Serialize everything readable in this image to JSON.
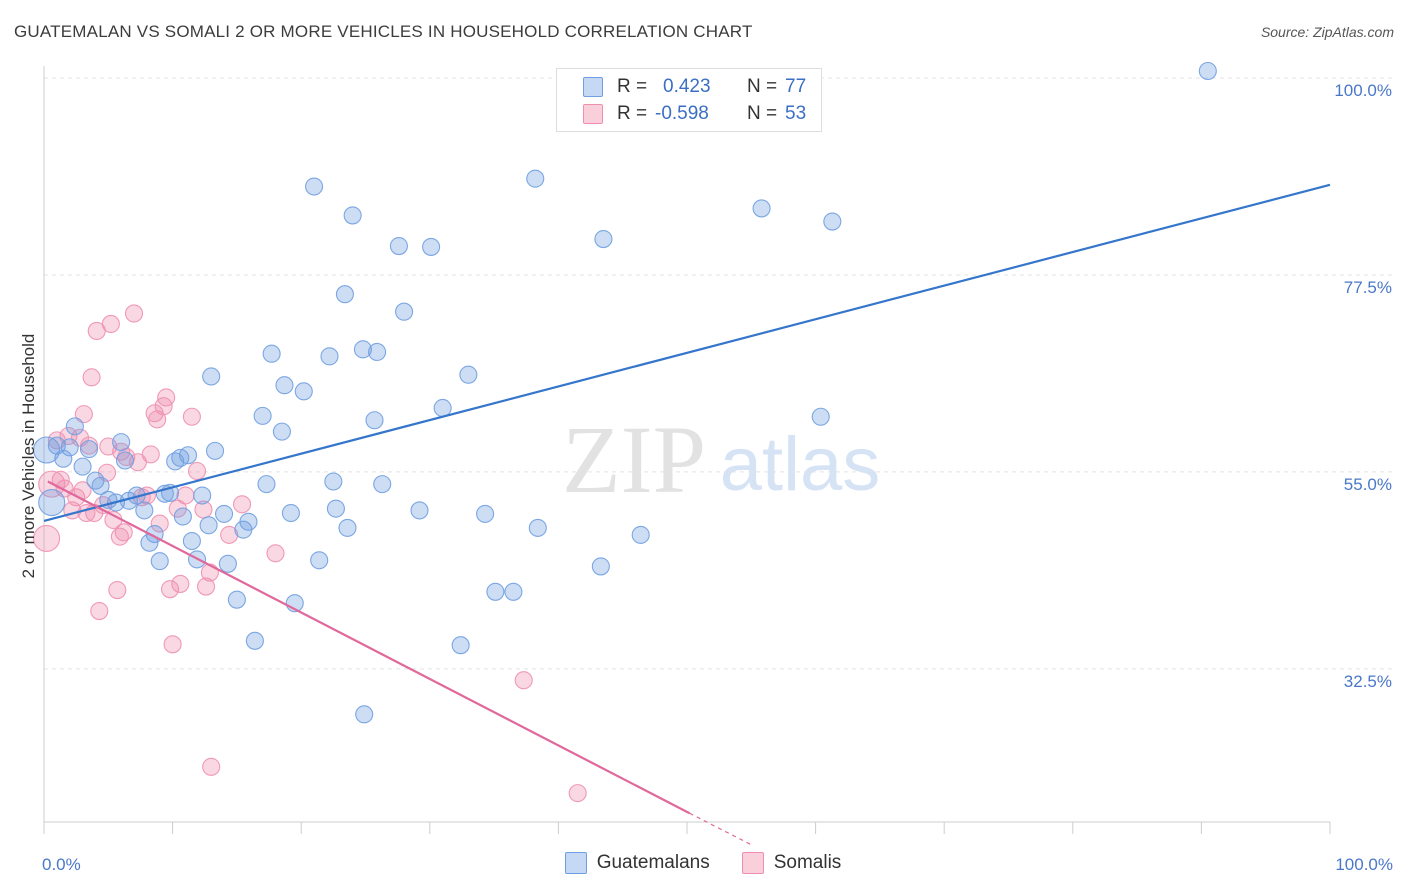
{
  "title": "GUATEMALAN VS SOMALI 2 OR MORE VEHICLES IN HOUSEHOLD CORRELATION CHART",
  "source": "Source: ZipAtlas.com",
  "watermark": {
    "zip": "ZIP",
    "atlas": "atlas"
  },
  "legend": {
    "rows": [
      {
        "r_label": "R =",
        "r_value": "0.423",
        "n_label": "N =",
        "n_value": "77"
      },
      {
        "r_label": "R =",
        "r_value": "-0.598",
        "n_label": "N =",
        "n_value": "53"
      }
    ]
  },
  "bottom_legend": [
    "Guatemalans",
    "Somalis"
  ],
  "chart_data": {
    "type": "scatter",
    "ylabel": "2 or more Vehicles in Household",
    "xlim": [
      0,
      100
    ],
    "ylim": [
      15,
      100
    ],
    "x_tick_labels": [
      "0.0%",
      "100.0%"
    ],
    "y_ticks": [
      {
        "value": 100,
        "label": "100.0%"
      },
      {
        "value": 77.5,
        "label": "77.5%"
      },
      {
        "value": 55,
        "label": "55.0%"
      },
      {
        "value": 32.5,
        "label": "32.5%"
      }
    ],
    "grid": true,
    "colors": {
      "guatemalans": "#6f9fe0",
      "somalis": "#ef8fb0",
      "blue_line": "#3576cc",
      "pink_line": "#e0689a",
      "tick_text": "#4a78c8"
    },
    "series": [
      {
        "name": "Guatemalans",
        "trend": [
          [
            0,
            49.4
          ],
          [
            100,
            87.8
          ]
        ],
        "points": [
          [
            0.2,
            57.5
          ],
          [
            0.6,
            51.5
          ],
          [
            1.0,
            58.0
          ],
          [
            1.5,
            56.5
          ],
          [
            2.0,
            57.8
          ],
          [
            2.4,
            60.2
          ],
          [
            3.0,
            55.6
          ],
          [
            3.5,
            57.6
          ],
          [
            4.0,
            54.0
          ],
          [
            4.4,
            53.4
          ],
          [
            5.0,
            51.8
          ],
          [
            5.6,
            51.5
          ],
          [
            6.0,
            58.4
          ],
          [
            6.3,
            56.3
          ],
          [
            6.6,
            51.7
          ],
          [
            7.2,
            52.3
          ],
          [
            7.8,
            50.6
          ],
          [
            8.2,
            46.9
          ],
          [
            8.6,
            47.9
          ],
          [
            9.0,
            44.8
          ],
          [
            9.4,
            52.5
          ],
          [
            9.8,
            52.6
          ],
          [
            10.2,
            56.2
          ],
          [
            10.6,
            56.6
          ],
          [
            10.8,
            49.9
          ],
          [
            11.2,
            56.9
          ],
          [
            11.5,
            47.1
          ],
          [
            11.9,
            45.0
          ],
          [
            12.3,
            52.3
          ],
          [
            12.8,
            48.9
          ],
          [
            13.0,
            65.9
          ],
          [
            13.3,
            57.4
          ],
          [
            14.0,
            50.2
          ],
          [
            14.3,
            44.5
          ],
          [
            15.0,
            40.4
          ],
          [
            15.5,
            48.4
          ],
          [
            15.9,
            49.3
          ],
          [
            16.4,
            35.7
          ],
          [
            17.0,
            61.4
          ],
          [
            17.3,
            53.6
          ],
          [
            17.7,
            68.5
          ],
          [
            18.5,
            59.6
          ],
          [
            18.7,
            64.9
          ],
          [
            19.2,
            50.3
          ],
          [
            19.5,
            40.0
          ],
          [
            20.2,
            64.2
          ],
          [
            21.0,
            87.6
          ],
          [
            21.4,
            44.9
          ],
          [
            22.2,
            68.2
          ],
          [
            22.5,
            53.9
          ],
          [
            22.7,
            50.8
          ],
          [
            23.4,
            75.3
          ],
          [
            23.6,
            48.6
          ],
          [
            24.0,
            84.3
          ],
          [
            24.8,
            69.0
          ],
          [
            24.9,
            27.3
          ],
          [
            25.7,
            60.9
          ],
          [
            25.9,
            68.7
          ],
          [
            26.3,
            53.6
          ],
          [
            27.6,
            80.8
          ],
          [
            28.0,
            73.3
          ],
          [
            29.2,
            50.6
          ],
          [
            30.1,
            80.7
          ],
          [
            31.0,
            62.3
          ],
          [
            32.4,
            35.2
          ],
          [
            33.0,
            66.1
          ],
          [
            34.3,
            50.2
          ],
          [
            35.1,
            41.3
          ],
          [
            36.5,
            41.3
          ],
          [
            38.2,
            88.5
          ],
          [
            38.4,
            48.6
          ],
          [
            43.3,
            44.2
          ],
          [
            43.5,
            81.6
          ],
          [
            46.4,
            47.8
          ],
          [
            55.8,
            85.1
          ],
          [
            60.4,
            61.3
          ],
          [
            61.3,
            83.6
          ],
          [
            90.5,
            100.8
          ]
        ]
      },
      {
        "name": "Somalis",
        "trend": [
          [
            0.3,
            53.9
          ],
          [
            50.2,
            16.0
          ]
        ],
        "trend_dash": [
          [
            50.2,
            16.0
          ],
          [
            55.0,
            12.4
          ]
        ],
        "points": [
          [
            0.2,
            47.4
          ],
          [
            0.6,
            53.6
          ],
          [
            1.0,
            58.6
          ],
          [
            1.3,
            54.1
          ],
          [
            1.6,
            53.1
          ],
          [
            1.9,
            59.1
          ],
          [
            2.2,
            50.6
          ],
          [
            2.5,
            52.1
          ],
          [
            2.8,
            58.9
          ],
          [
            3.0,
            52.9
          ],
          [
            3.1,
            61.6
          ],
          [
            3.3,
            50.3
          ],
          [
            3.5,
            58.0
          ],
          [
            3.7,
            65.8
          ],
          [
            3.9,
            50.3
          ],
          [
            4.1,
            71.1
          ],
          [
            4.3,
            39.1
          ],
          [
            4.6,
            51.2
          ],
          [
            4.9,
            54.9
          ],
          [
            5.0,
            57.9
          ],
          [
            5.2,
            71.9
          ],
          [
            5.4,
            49.5
          ],
          [
            5.7,
            41.5
          ],
          [
            5.9,
            47.6
          ],
          [
            6.0,
            57.3
          ],
          [
            6.2,
            48.1
          ],
          [
            6.4,
            56.7
          ],
          [
            7.0,
            73.1
          ],
          [
            7.3,
            56.1
          ],
          [
            7.6,
            52.1
          ],
          [
            8.0,
            52.3
          ],
          [
            8.3,
            57.0
          ],
          [
            8.6,
            61.7
          ],
          [
            8.8,
            61.0
          ],
          [
            9.0,
            49.1
          ],
          [
            9.3,
            62.5
          ],
          [
            9.5,
            63.5
          ],
          [
            9.8,
            41.6
          ],
          [
            10.0,
            35.3
          ],
          [
            10.4,
            50.8
          ],
          [
            10.6,
            42.2
          ],
          [
            11.0,
            52.3
          ],
          [
            11.5,
            61.3
          ],
          [
            11.9,
            55.1
          ],
          [
            12.4,
            50.7
          ],
          [
            12.6,
            41.9
          ],
          [
            12.9,
            43.5
          ],
          [
            13.0,
            21.3
          ],
          [
            14.4,
            47.8
          ],
          [
            15.4,
            51.3
          ],
          [
            18.0,
            45.7
          ],
          [
            37.3,
            31.2
          ],
          [
            41.5,
            18.3
          ]
        ]
      }
    ]
  }
}
